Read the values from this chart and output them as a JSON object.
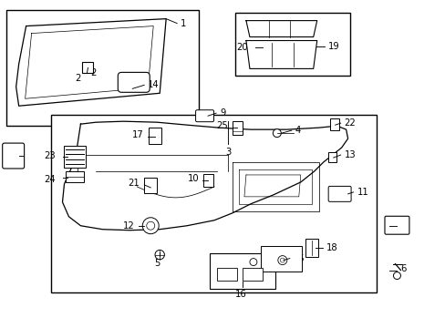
{
  "bg": "#ffffff",
  "lc": "#000000",
  "fig_w": 4.89,
  "fig_h": 3.6,
  "dpi": 100,
  "xlim": [
    0,
    4.89
  ],
  "ylim": [
    0,
    3.6
  ]
}
